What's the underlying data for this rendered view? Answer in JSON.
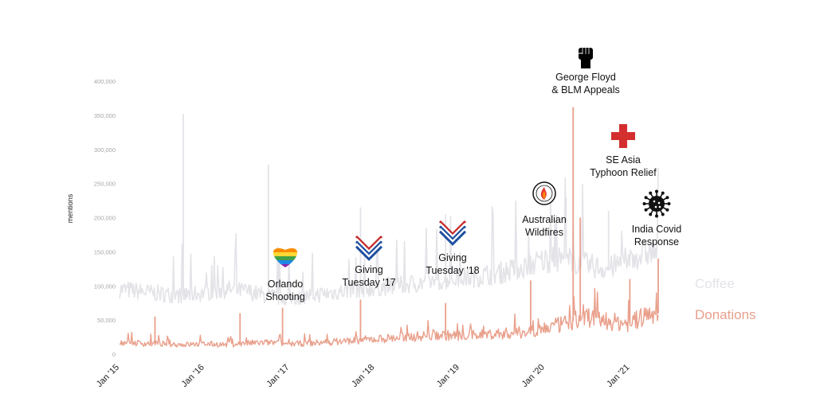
{
  "chart_data": {
    "type": "line",
    "title": "",
    "xlabel": "",
    "ylabel": "mentions",
    "ylim": [
      0,
      400000
    ],
    "grid": false,
    "legend_placement": "right",
    "y_ticks": [
      {
        "value": 0,
        "label": "0"
      },
      {
        "value": 50000,
        "label": "50,000"
      },
      {
        "value": 100000,
        "label": "100,000"
      },
      {
        "value": 150000,
        "label": "150,000"
      },
      {
        "value": 200000,
        "label": "200,000"
      },
      {
        "value": 250000,
        "label": "250,000"
      },
      {
        "value": 300000,
        "label": "300,000"
      },
      {
        "value": 350000,
        "label": "350,000"
      },
      {
        "value": 400000,
        "label": "400,000"
      }
    ],
    "x_ticks": [
      {
        "date": "2015-01",
        "label": "Jan '15"
      },
      {
        "date": "2016-01",
        "label": "Jan '16"
      },
      {
        "date": "2017-01",
        "label": "Jan '17"
      },
      {
        "date": "2018-01",
        "label": "Jan '18"
      },
      {
        "date": "2019-01",
        "label": "Jan '19"
      },
      {
        "date": "2020-01",
        "label": "Jan '20"
      },
      {
        "date": "2021-01",
        "label": "Jan '21"
      }
    ],
    "x_range": [
      "2015-01",
      "2021-05"
    ],
    "series": [
      {
        "name": "Coffee",
        "color": "#e3e3e8",
        "values": [
          {
            "date": "2015-01",
            "y": 95000
          },
          {
            "date": "2015-04",
            "y": 92000
          },
          {
            "date": "2015-07",
            "y": 88000
          },
          {
            "date": "2015-10",
            "y": 86000
          },
          {
            "date": "2016-01",
            "y": 90000
          },
          {
            "date": "2016-04",
            "y": 95000
          },
          {
            "date": "2016-07",
            "y": 92000
          },
          {
            "date": "2016-10",
            "y": 85000
          },
          {
            "date": "2017-01",
            "y": 82000
          },
          {
            "date": "2017-04",
            "y": 86000
          },
          {
            "date": "2017-07",
            "y": 90000
          },
          {
            "date": "2017-10",
            "y": 95000
          },
          {
            "date": "2018-01",
            "y": 98000
          },
          {
            "date": "2018-04",
            "y": 100000
          },
          {
            "date": "2018-07",
            "y": 104000
          },
          {
            "date": "2018-10",
            "y": 108000
          },
          {
            "date": "2019-01",
            "y": 112000
          },
          {
            "date": "2019-04",
            "y": 115000
          },
          {
            "date": "2019-07",
            "y": 120000
          },
          {
            "date": "2019-10",
            "y": 128000
          },
          {
            "date": "2020-01",
            "y": 138000
          },
          {
            "date": "2020-04",
            "y": 140000
          },
          {
            "date": "2020-07",
            "y": 130000
          },
          {
            "date": "2020-10",
            "y": 125000
          },
          {
            "date": "2021-01",
            "y": 140000
          },
          {
            "date": "2021-04",
            "y": 150000
          }
        ],
        "spikes": [
          {
            "date": "2015-10",
            "y": 352000
          },
          {
            "date": "2016-10",
            "y": 278000
          },
          {
            "date": "2017-11",
            "y": 215000
          },
          {
            "date": "2018-11",
            "y": 205000
          },
          {
            "date": "2020-04",
            "y": 230000
          },
          {
            "date": "2020-10",
            "y": 210000
          }
        ]
      },
      {
        "name": "Donations",
        "color": "#e9a08c",
        "values": [
          {
            "date": "2015-01",
            "y": 18000
          },
          {
            "date": "2015-04",
            "y": 16000
          },
          {
            "date": "2015-07",
            "y": 15000
          },
          {
            "date": "2015-10",
            "y": 14000
          },
          {
            "date": "2016-01",
            "y": 15000
          },
          {
            "date": "2016-04",
            "y": 14000
          },
          {
            "date": "2016-07",
            "y": 16000
          },
          {
            "date": "2016-10",
            "y": 17000
          },
          {
            "date": "2017-01",
            "y": 15000
          },
          {
            "date": "2017-04",
            "y": 16000
          },
          {
            "date": "2017-07",
            "y": 18000
          },
          {
            "date": "2017-10",
            "y": 20000
          },
          {
            "date": "2018-01",
            "y": 22000
          },
          {
            "date": "2018-04",
            "y": 24000
          },
          {
            "date": "2018-07",
            "y": 26000
          },
          {
            "date": "2018-10",
            "y": 28000
          },
          {
            "date": "2019-01",
            "y": 27000
          },
          {
            "date": "2019-04",
            "y": 29000
          },
          {
            "date": "2019-07",
            "y": 30000
          },
          {
            "date": "2019-10",
            "y": 32000
          },
          {
            "date": "2020-01",
            "y": 38000
          },
          {
            "date": "2020-04",
            "y": 45000
          },
          {
            "date": "2020-07",
            "y": 55000
          },
          {
            "date": "2020-10",
            "y": 48000
          },
          {
            "date": "2021-01",
            "y": 45000
          },
          {
            "date": "2021-04",
            "y": 60000
          }
        ],
        "spikes": [
          {
            "date": "2015-06",
            "y": 55000
          },
          {
            "date": "2016-06",
            "y": 60000
          },
          {
            "date": "2016-12",
            "y": 68000
          },
          {
            "date": "2017-11",
            "y": 80000
          },
          {
            "date": "2018-11",
            "y": 75000
          },
          {
            "date": "2019-11",
            "y": 108000
          },
          {
            "date": "2020-05",
            "y": 362000
          },
          {
            "date": "2020-06",
            "y": 200000
          },
          {
            "date": "2021-01",
            "y": 110000
          },
          {
            "date": "2021-05",
            "y": 140000
          }
        ]
      }
    ],
    "annotations": [
      {
        "lines": [
          "Orlando",
          "Shooting"
        ],
        "date": "2016-06",
        "icon": "rainbow-heart-icon"
      },
      {
        "lines": [
          "Giving",
          "Tuesday '17"
        ],
        "date": "2017-11",
        "icon": "giving-tuesday-icon"
      },
      {
        "lines": [
          "Giving",
          "Tuesday '18"
        ],
        "date": "2018-11",
        "icon": "giving-tuesday-icon"
      },
      {
        "lines": [
          "Australian",
          "Wildfires"
        ],
        "date": "2020-01",
        "icon": "wildfire-foundation-seal-icon"
      },
      {
        "lines": [
          "George Floyd",
          "& BLM Appeals"
        ],
        "date": "2020-06",
        "icon": "raised-fist-icon"
      },
      {
        "lines": [
          "SE Asia",
          "Typhoon Relief"
        ],
        "date": "2020-11",
        "icon": "red-cross-icon"
      },
      {
        "lines": [
          "India Covid",
          "Response"
        ],
        "date": "2021-04",
        "icon": "virus-icon"
      }
    ]
  }
}
